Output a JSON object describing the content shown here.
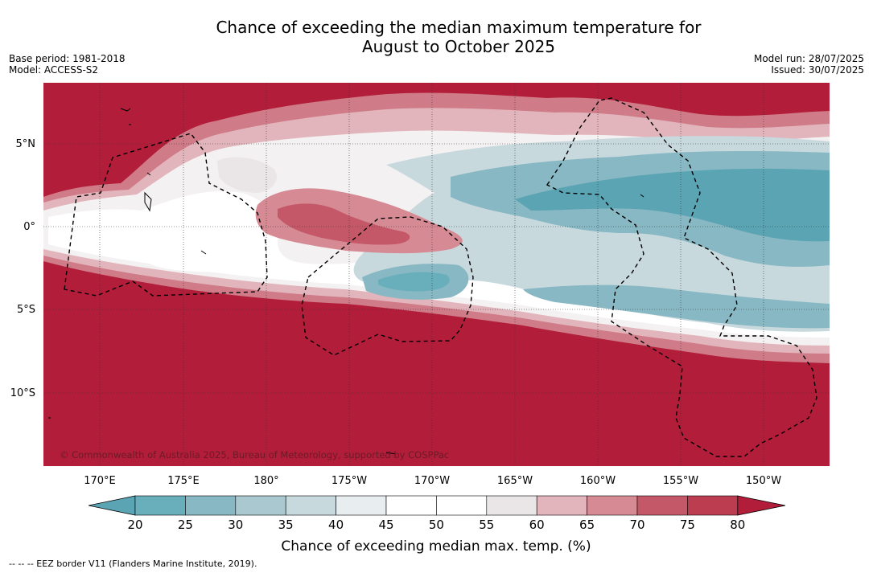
{
  "title_line1": "Chance of exceeding the median maximum temperature for",
  "title_line2": "August to October 2025",
  "meta_left": {
    "base_period": "Base period: 1981-2018",
    "model": "Model: ACCESS-S2"
  },
  "meta_right": {
    "model_run": "Model run: 28/07/2025",
    "issued": "Issued: 30/07/2025"
  },
  "map": {
    "lat_labels": [
      "5°N",
      "0°",
      "5°S",
      "10°S"
    ],
    "lon_labels": [
      "170°E",
      "175°E",
      "180°",
      "175°W",
      "170°W",
      "165°W",
      "160°W",
      "155°W",
      "150°W"
    ],
    "copyright": "© Commonwealth of Australia 2025, Bureau of Meteorology, supported by COSPPac"
  },
  "colorbar": {
    "ticks": [
      "20",
      "25",
      "30",
      "35",
      "40",
      "45",
      "50",
      "55",
      "60",
      "65",
      "70",
      "75",
      "80"
    ],
    "colors": [
      "#5ba4b4",
      "#68aebb",
      "#88b8c3",
      "#a9c8cf",
      "#c8d9de",
      "#e8eef0",
      "#ffffff",
      "#ffffff",
      "#eae6e7",
      "#e2b5bc",
      "#d68a94",
      "#c45868",
      "#bd3d50",
      "#b21d3a"
    ],
    "label": "Chance of exceeding median max. temp. (%)"
  },
  "footnote": "--  --  -- EEZ border V11 (Flanders Marine Institute, 2019)."
}
